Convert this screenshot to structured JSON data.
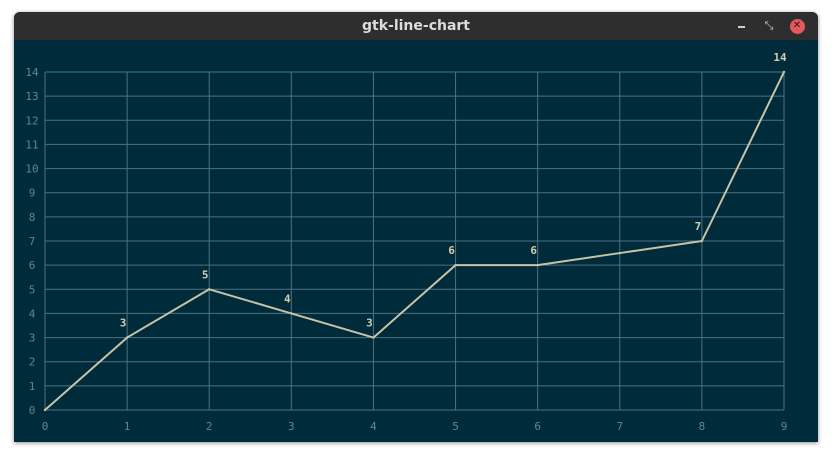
{
  "window": {
    "title": "gtk-line-chart",
    "controls": {
      "minimize_icon": "minimize-icon",
      "restore_icon": "restore-icon",
      "close_icon": "close-icon"
    }
  },
  "colors": {
    "background": "#002b3a",
    "grid": "#4a7383",
    "tick_label": "#5e8796",
    "line": "#c9c3a6",
    "data_label": "#d2cdb0",
    "titlebar": "#2e2e2e",
    "close_button": "#e05a5f"
  },
  "chart_data": {
    "type": "line",
    "x": [
      0,
      1,
      2,
      3,
      4,
      5,
      6,
      7,
      8,
      9
    ],
    "series": [
      {
        "values": [
          0,
          3,
          5,
          4,
          3,
          6,
          6,
          6.5,
          7,
          14
        ]
      }
    ],
    "data_labels": [
      {
        "x": 1,
        "text": "3"
      },
      {
        "x": 2,
        "text": "5"
      },
      {
        "x": 3,
        "text": "4"
      },
      {
        "x": 4,
        "text": "3"
      },
      {
        "x": 5,
        "text": "6"
      },
      {
        "x": 6,
        "text": "6"
      },
      {
        "x": 8,
        "text": "7"
      },
      {
        "x": 9,
        "text": "14"
      }
    ],
    "x_ticks": [
      "0",
      "1",
      "2",
      "3",
      "4",
      "5",
      "6",
      "7",
      "8",
      "9"
    ],
    "y_ticks": [
      "0",
      "1",
      "2",
      "3",
      "4",
      "5",
      "6",
      "7",
      "8",
      "9",
      "10",
      "11",
      "12",
      "13",
      "14"
    ],
    "xlim": [
      0,
      9
    ],
    "ylim": [
      0,
      14
    ],
    "grid": true,
    "title": "",
    "xlabel": "",
    "ylabel": ""
  }
}
